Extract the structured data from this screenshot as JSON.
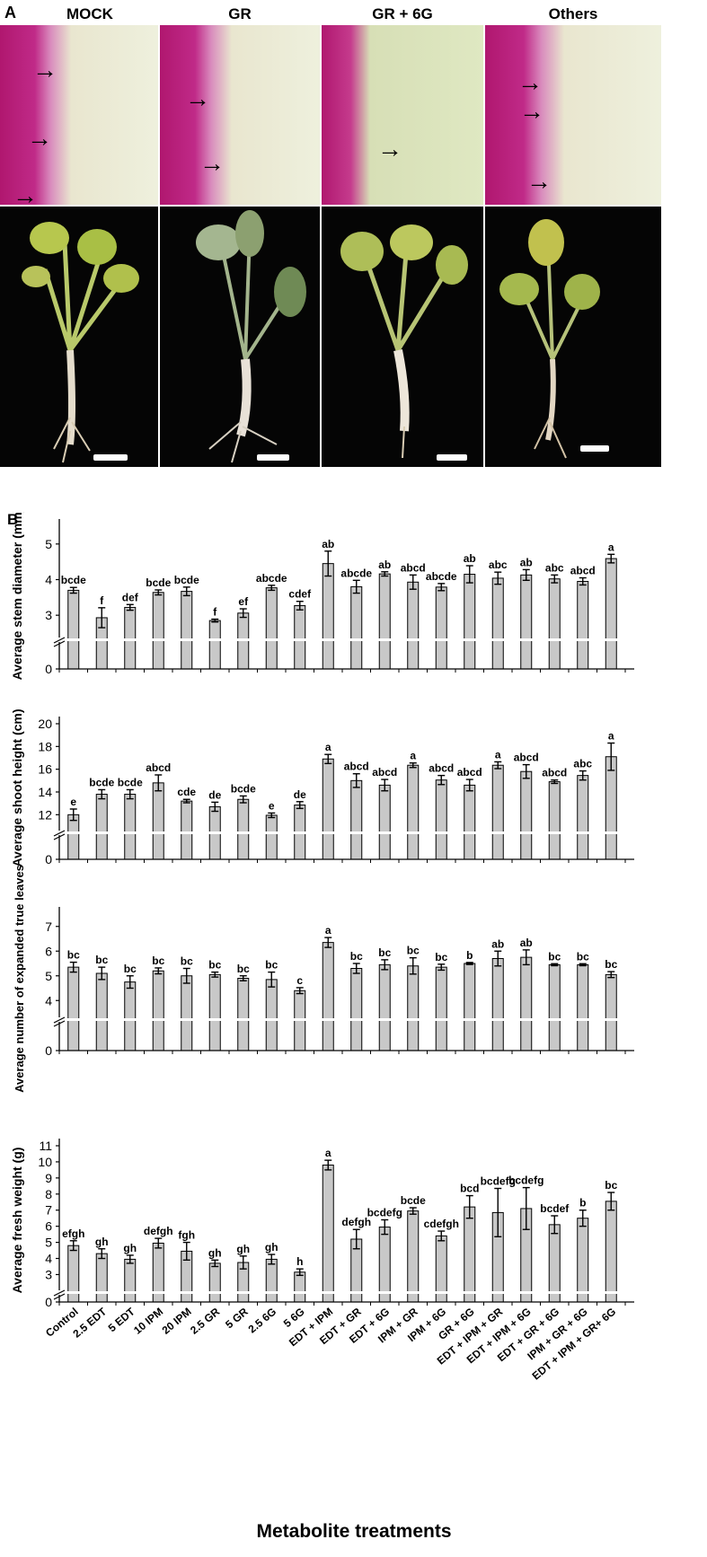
{
  "panel_a": {
    "letter": "A",
    "columns": [
      "MOCK",
      "GR",
      "GR + 6G",
      "Others"
    ]
  },
  "panel_b": {
    "letter": "B",
    "xlabel": "Metabolite treatments"
  },
  "chart_data": [
    {
      "type": "bar",
      "ylabel": "Average stem diameter (mm)",
      "ylim": [
        0,
        5.5
      ],
      "yticks": [
        0,
        3,
        4,
        5
      ],
      "axis_break": true,
      "categories": [
        "Control",
        "2.5 EDT",
        "5 EDT",
        "10 IPM",
        "20 IPM",
        "2.5 GR",
        "5 GR",
        "2.5 6G",
        "5 6G",
        "EDT + IPM",
        "EDT + GR",
        "EDT + 6G",
        "IPM + GR",
        "IPM + 6G",
        "GR + 6G",
        "EDT + IPM + GR",
        "EDT + IPM + 6G",
        "EDT + GR + 6G",
        "IPM + GR + 6G",
        "EDT + IPM + GR+ 6G"
      ],
      "values": [
        3.7,
        2.93,
        3.22,
        3.64,
        3.67,
        2.85,
        3.06,
        3.77,
        3.27,
        4.45,
        3.8,
        4.16,
        3.93,
        3.79,
        4.15,
        4.04,
        4.13,
        4.02,
        3.95,
        4.59
      ],
      "errors": [
        0.08,
        0.28,
        0.08,
        0.07,
        0.12,
        0.04,
        0.12,
        0.07,
        0.12,
        0.35,
        0.18,
        0.06,
        0.2,
        0.1,
        0.24,
        0.17,
        0.15,
        0.11,
        0.1,
        0.12
      ],
      "letters": [
        "bcde",
        "f",
        "def",
        "bcde",
        "bcde",
        "f",
        "ef",
        "abcde",
        "cdef",
        "ab",
        "abcde",
        "ab",
        "abcd",
        "abcde",
        "ab",
        "abc",
        "ab",
        "abc",
        "abcd",
        "a"
      ]
    },
    {
      "type": "bar",
      "ylabel": "Average shoot height (cm)",
      "ylim": [
        0,
        20
      ],
      "yticks": [
        0,
        12,
        14,
        16,
        18,
        20
      ],
      "axis_break": true,
      "categories": [
        "Control",
        "2.5 EDT",
        "5 EDT",
        "10 IPM",
        "20 IPM",
        "2.5 GR",
        "5 GR",
        "2.5 6G",
        "5 6G",
        "EDT + IPM",
        "EDT + GR",
        "EDT + 6G",
        "IPM + GR",
        "IPM + 6G",
        "GR + 6G",
        "EDT + IPM + GR",
        "EDT + IPM + 6G",
        "EDT + GR + 6G",
        "IPM + GR + 6G",
        "EDT + IPM + GR+ 6G"
      ],
      "values": [
        12.0,
        13.8,
        13.8,
        14.8,
        13.2,
        12.7,
        13.35,
        11.95,
        12.85,
        16.9,
        15.0,
        14.6,
        16.35,
        15.05,
        14.6,
        16.35,
        15.8,
        14.9,
        15.45,
        17.1
      ],
      "errors": [
        0.5,
        0.4,
        0.4,
        0.7,
        0.15,
        0.4,
        0.3,
        0.2,
        0.3,
        0.4,
        0.6,
        0.5,
        0.2,
        0.4,
        0.5,
        0.3,
        0.6,
        0.15,
        0.4,
        1.2
      ],
      "letters": [
        "e",
        "bcde",
        "bcde",
        "abcd",
        "cde",
        "de",
        "bcde",
        "e",
        "de",
        "a",
        "abcd",
        "abcd",
        "a",
        "abcd",
        "abcd",
        "a",
        "abcd",
        "abcd",
        "abc",
        "a"
      ]
    },
    {
      "type": "bar",
      "ylabel": "Average number of expanded true leaves",
      "ylim": [
        0,
        7.5
      ],
      "yticks": [
        0,
        4,
        5,
        6,
        7
      ],
      "axis_break": true,
      "categories": [
        "Control",
        "2.5 EDT",
        "5 EDT",
        "10 IPM",
        "20 IPM",
        "2.5 GR",
        "5 GR",
        "2.5 6G",
        "5 6G",
        "EDT + IPM",
        "EDT + GR",
        "EDT + 6G",
        "IPM + GR",
        "IPM + 6G",
        "GR + 6G",
        "EDT + IPM + GR",
        "EDT + IPM + 6G",
        "EDT + GR + 6G",
        "IPM + GR + 6G",
        "EDT + IPM + GR+ 6G"
      ],
      "values": [
        5.35,
        5.1,
        4.75,
        5.2,
        5.0,
        5.05,
        4.9,
        4.85,
        4.4,
        6.35,
        5.3,
        5.45,
        5.4,
        5.35,
        5.5,
        5.7,
        5.75,
        5.45,
        5.45,
        5.05
      ],
      "errors": [
        0.2,
        0.25,
        0.25,
        0.12,
        0.3,
        0.1,
        0.1,
        0.3,
        0.12,
        0.2,
        0.2,
        0.2,
        0.33,
        0.12,
        0.04,
        0.3,
        0.3,
        0.04,
        0.04,
        0.12
      ],
      "letters": [
        "bc",
        "bc",
        "bc",
        "bc",
        "bc",
        "bc",
        "bc",
        "bc",
        "c",
        "a",
        "bc",
        "bc",
        "bc",
        "bc",
        "b",
        "ab",
        "ab",
        "bc",
        "bc",
        "bc"
      ]
    },
    {
      "type": "bar",
      "ylabel": "Average fresh weight (g)",
      "ylim": [
        0,
        11
      ],
      "yticks": [
        0,
        3,
        4,
        5,
        6,
        7,
        8,
        9,
        10,
        11
      ],
      "axis_break": true,
      "categories": [
        "Control",
        "2.5 EDT",
        "5 EDT",
        "10 IPM",
        "20 IPM",
        "2.5 GR",
        "5 GR",
        "2.5 6G",
        "5 6G",
        "EDT + IPM",
        "EDT + GR",
        "EDT + 6G",
        "IPM + GR",
        "IPM + 6G",
        "GR + 6G",
        "EDT + IPM + GR",
        "EDT + IPM + 6G",
        "EDT + GR + 6G",
        "IPM + GR + 6G",
        "EDT + IPM + GR+ 6G"
      ],
      "values": [
        4.8,
        4.3,
        3.95,
        4.95,
        4.45,
        3.7,
        3.75,
        3.95,
        3.15,
        9.8,
        5.2,
        5.95,
        6.95,
        5.4,
        7.2,
        6.85,
        7.1,
        6.1,
        6.5,
        7.55
      ],
      "errors": [
        0.3,
        0.3,
        0.25,
        0.3,
        0.55,
        0.2,
        0.4,
        0.3,
        0.2,
        0.3,
        0.6,
        0.45,
        0.2,
        0.3,
        0.7,
        1.5,
        1.3,
        0.55,
        0.5,
        0.55
      ],
      "letters": [
        "efgh",
        "gh",
        "gh",
        "defgh",
        "fgh",
        "gh",
        "gh",
        "gh",
        "h",
        "a",
        "defgh",
        "bcdefg",
        "bcde",
        "cdefgh",
        "bcd",
        "bcdefg",
        "bcdefg",
        "bcdef",
        "b",
        "bc"
      ]
    }
  ]
}
